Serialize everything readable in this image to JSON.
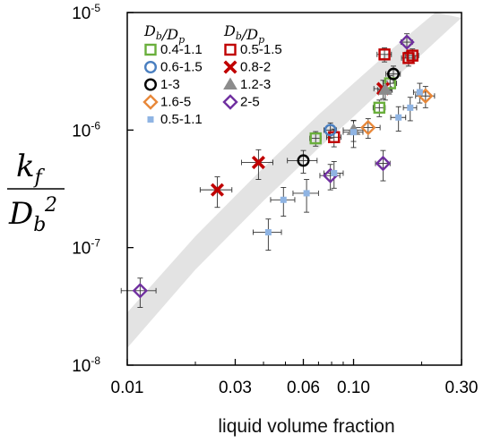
{
  "chart_data": {
    "type": "scatter",
    "xscale": "log",
    "yscale": "log",
    "xlabel": "liquid volume fraction",
    "ylabel": {
      "numerator": "k",
      "numerator_sub": "f",
      "denominator": "D",
      "denominator_sub": "b",
      "denominator_sup": "2"
    },
    "xlim": [
      0.01,
      0.3
    ],
    "ylim": [
      1e-08,
      1e-05
    ],
    "xticks": [
      {
        "value": 0.01,
        "label": "0.01"
      },
      {
        "value": 0.03,
        "label": "0.03"
      },
      {
        "value": 0.06,
        "label": "0.06"
      },
      {
        "value": 0.1,
        "label": "0.10"
      },
      {
        "value": 0.3,
        "label": "0.30"
      }
    ],
    "yticks": [
      {
        "value": 1e-08,
        "base": "10",
        "exp": "-8"
      },
      {
        "value": 1e-07,
        "base": "10",
        "exp": "-7"
      },
      {
        "value": 1e-06,
        "base": "10",
        "exp": "-6"
      },
      {
        "value": 1e-05,
        "base": "10",
        "exp": "-5"
      }
    ],
    "legend": {
      "placement": "top-left",
      "header": {
        "main": "D",
        "sub1": "b",
        "slash": "/",
        "main2": "D",
        "sub2": "p"
      }
    },
    "band": {
      "color": "#e3e3e3",
      "lower": [
        [
          0.01,
          1.4e-08
        ],
        [
          0.02,
          6.5e-08
        ],
        [
          0.04,
          2.5e-07
        ],
        [
          0.07,
          7e-07
        ],
        [
          0.1,
          1.3e-06
        ],
        [
          0.15,
          2.7e-06
        ],
        [
          0.2,
          4.4e-06
        ],
        [
          0.27,
          7.5e-06
        ],
        [
          0.3,
          9e-06
        ]
      ],
      "upper": [
        [
          0.01,
          2.8e-08
        ],
        [
          0.02,
          1.25e-07
        ],
        [
          0.04,
          4.8e-07
        ],
        [
          0.07,
          1.35e-06
        ],
        [
          0.1,
          2.5e-06
        ],
        [
          0.15,
          5e-06
        ],
        [
          0.2,
          8e-06
        ],
        [
          0.23,
          1e-05
        ]
      ]
    },
    "series": [
      {
        "name": "0.4-1.1",
        "marker": "square-open",
        "color": "#6aaf3c",
        "points": [
          {
            "x": 0.068,
            "y": 8.5e-07,
            "xerr": 0.004,
            "yerr": 1.2e-07
          },
          {
            "x": 0.13,
            "y": 1.55e-06,
            "xerr": 0.008,
            "yerr": 2.5e-07
          },
          {
            "x": 0.145,
            "y": 2.5e-06,
            "xerr": 0.01,
            "yerr": 4e-07
          }
        ]
      },
      {
        "name": "0.5-1.5",
        "marker": "square-open",
        "color": "#c00000",
        "points": [
          {
            "x": 0.082,
            "y": 8.7e-07,
            "xerr": 0.006,
            "yerr": 1.5e-07
          },
          {
            "x": 0.137,
            "y": 4.4e-06,
            "xerr": 0.01,
            "yerr": 6e-07
          },
          {
            "x": 0.175,
            "y": 4.1e-06,
            "xerr": 0.012,
            "yerr": 6e-07
          },
          {
            "x": 0.182,
            "y": 4.3e-06,
            "xerr": 0.012,
            "yerr": 6e-07
          }
        ]
      },
      {
        "name": "0.6-1.5",
        "marker": "circle-open",
        "color": "#4a7fc0",
        "points": [
          {
            "x": 0.079,
            "y": 1e-06,
            "xerr": 0.005,
            "yerr": 1.5e-07
          }
        ]
      },
      {
        "name": "0.8-2",
        "marker": "x",
        "color": "#c00000",
        "points": [
          {
            "x": 0.025,
            "y": 3.1e-07,
            "xerr": 0.004,
            "yerr": 9e-08
          },
          {
            "x": 0.038,
            "y": 5.3e-07,
            "xerr": 0.006,
            "yerr": 1.5e-07
          },
          {
            "x": 0.135,
            "y": 2.25e-06,
            "xerr": 0.012,
            "yerr": 4e-07
          }
        ]
      },
      {
        "name": "1-3",
        "marker": "circle-open",
        "color": "#000000",
        "points": [
          {
            "x": 0.06,
            "y": 5.5e-07,
            "xerr": 0.009,
            "yerr": 1.2e-07
          },
          {
            "x": 0.15,
            "y": 3e-06,
            "xerr": 0.011,
            "yerr": 5e-07
          }
        ]
      },
      {
        "name": "1.2-3",
        "marker": "triangle",
        "color": "#8c8c8c",
        "points": [
          {
            "x": 0.1,
            "y": 1e-06,
            "xerr": 0.01,
            "yerr": 2e-07
          },
          {
            "x": 0.138,
            "y": 2.2e-06,
            "xerr": 0.01,
            "yerr": 4e-07
          }
        ]
      },
      {
        "name": "1.6-5",
        "marker": "diamond-open",
        "color": "#e8883a",
        "points": [
          {
            "x": 0.116,
            "y": 1.05e-06,
            "xerr": 0.015,
            "yerr": 2e-07
          },
          {
            "x": 0.208,
            "y": 1.95e-06,
            "xerr": 0.02,
            "yerr": 4e-07
          }
        ]
      },
      {
        "name": "2-5",
        "marker": "diamond-open",
        "color": "#7030a0",
        "points": [
          {
            "x": 0.0114,
            "y": 4.3e-08,
            "xerr": 0.002,
            "yerr": 1.2e-08
          },
          {
            "x": 0.079,
            "y": 4.1e-07,
            "xerr": 0.008,
            "yerr": 1e-07
          },
          {
            "x": 0.135,
            "y": 5.2e-07,
            "xerr": 0.01,
            "yerr": 1.5e-07
          },
          {
            "x": 0.172,
            "y": 5.6e-06,
            "xerr": 0.01,
            "yerr": 1e-06
          }
        ]
      },
      {
        "name": "0.5-1.1",
        "marker": "square-filled-small",
        "color": "#8fb4e3",
        "points": [
          {
            "x": 0.042,
            "y": 1.35e-07,
            "xerr": 0.006,
            "yerr": 4e-08
          },
          {
            "x": 0.049,
            "y": 2.55e-07,
            "xerr": 0.006,
            "yerr": 7e-08
          },
          {
            "x": 0.062,
            "y": 2.9e-07,
            "xerr": 0.008,
            "yerr": 9e-08
          },
          {
            "x": 0.082,
            "y": 4.3e-07,
            "xerr": 0.008,
            "yerr": 1.1e-07
          },
          {
            "x": 0.1,
            "y": 9.6e-07,
            "xerr": 0.01,
            "yerr": 2.5e-07
          },
          {
            "x": 0.158,
            "y": 1.28e-06,
            "xerr": 0.012,
            "yerr": 3e-07
          },
          {
            "x": 0.178,
            "y": 1.55e-06,
            "xerr": 0.012,
            "yerr": 3.5e-07
          },
          {
            "x": 0.196,
            "y": 2.1e-06,
            "xerr": 0.012,
            "yerr": 4e-07
          }
        ]
      }
    ],
    "legend_order": [
      [
        "0.4-1.1",
        "0.5-1.5"
      ],
      [
        "0.6-1.5",
        "0.8-2"
      ],
      [
        "1-3",
        "1.2-3"
      ],
      [
        "1.6-5",
        "2-5"
      ],
      [
        "0.5-1.1",
        null
      ]
    ]
  }
}
